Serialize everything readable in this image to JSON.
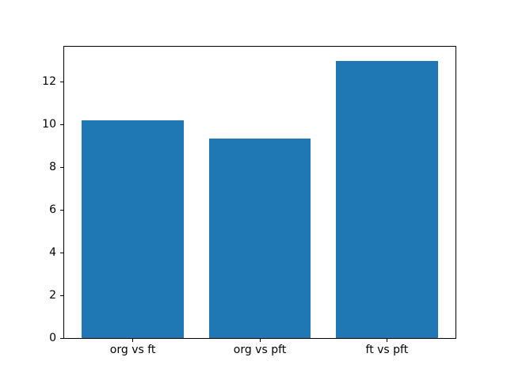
{
  "chart_data": {
    "type": "bar",
    "categories": [
      "org vs ft",
      "org vs pft",
      "ft vs pft"
    ],
    "values": [
      10.2,
      9.34,
      13.0
    ],
    "title": "",
    "xlabel": "",
    "ylabel": "",
    "ylim": [
      0,
      13.65
    ],
    "yticks": [
      0,
      2,
      4,
      6,
      8,
      10,
      12
    ],
    "bar_color": "#1f77b4",
    "bar_width": 0.8,
    "x_margin": 0.14,
    "grid": false,
    "legend": null,
    "background_color": "#ffffff",
    "spine_color": "#000000"
  }
}
